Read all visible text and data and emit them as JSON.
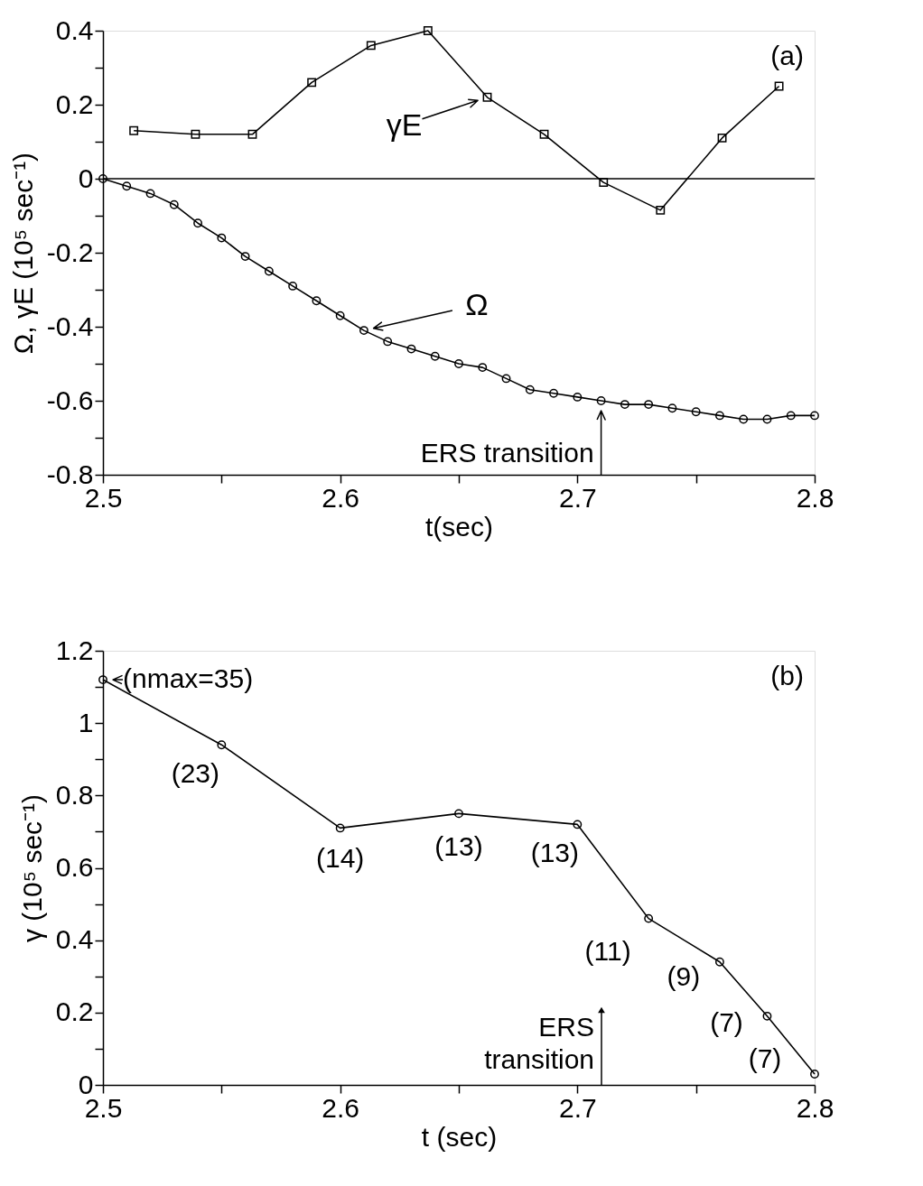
{
  "chart_data": [
    {
      "type": "line",
      "xlabel": "t(sec)",
      "ylabel": "Ω, γE (10⁵ sec⁻¹)",
      "xlim": [
        2.5,
        2.8
      ],
      "xticks": [
        2.5,
        {
          "value": 2.55,
          "label": null
        },
        2.6,
        {
          "value": 2.65,
          "label": null
        },
        2.7,
        {
          "value": 2.75,
          "label": null
        },
        2.8
      ],
      "ylim": [
        -0.8,
        0.4
      ],
      "yticks": [
        -0.8,
        {
          "value": -0.7,
          "label": null
        },
        -0.6,
        {
          "value": -0.5,
          "label": null
        },
        -0.4,
        {
          "value": -0.3,
          "label": null
        },
        -0.2,
        {
          "value": -0.1,
          "label": null
        },
        0,
        {
          "value": 0.1,
          "label": null
        },
        0.2,
        {
          "value": 0.3,
          "label": null
        },
        0.4
      ],
      "grid": false,
      "line_style": "solid",
      "ref_lines": [
        {
          "axis": "y",
          "value": 0,
          "color": "#000000"
        }
      ],
      "series": [
        {
          "name": "γE",
          "color": "#000000",
          "marker": "square",
          "x": [
            2.513,
            2.539,
            2.563,
            2.588,
            2.613,
            2.637,
            2.662,
            2.686,
            2.711,
            2.735,
            2.761,
            2.785
          ],
          "values": [
            0.13,
            0.12,
            0.12,
            0.26,
            0.36,
            0.4,
            0.22,
            0.12,
            -0.01,
            -0.085,
            0.11,
            0.25
          ]
        },
        {
          "name": "Ω",
          "color": "#000000",
          "marker": "circle",
          "x": [
            2.5,
            2.51,
            2.52,
            2.53,
            2.54,
            2.55,
            2.56,
            2.57,
            2.58,
            2.59,
            2.6,
            2.61,
            2.62,
            2.63,
            2.64,
            2.65,
            2.66,
            2.67,
            2.68,
            2.69,
            2.7,
            2.71,
            2.72,
            2.73,
            2.74,
            2.75,
            2.76,
            2.77,
            2.78,
            2.79,
            2.8
          ],
          "values": [
            0,
            -0.02,
            -0.04,
            -0.07,
            -0.12,
            -0.16,
            -0.21,
            -0.25,
            -0.29,
            -0.33,
            -0.37,
            -0.41,
            -0.44,
            -0.46,
            -0.48,
            -0.5,
            -0.51,
            -0.54,
            -0.57,
            -0.58,
            -0.59,
            -0.6,
            -0.61,
            -0.61,
            -0.62,
            -0.63,
            -0.64,
            -0.65,
            -0.65,
            -0.64,
            -0.64
          ]
        }
      ],
      "annotations": [
        "(a)",
        {
          "text": "ERS transition",
          "x": 2.71,
          "y": -0.6
        }
      ]
    },
    {
      "type": "line",
      "xlabel": "t (sec)",
      "ylabel": "γ (10⁵ sec⁻¹)",
      "xlim": [
        2.5,
        2.8
      ],
      "xticks": [
        2.5,
        {
          "value": 2.55,
          "label": null
        },
        2.6,
        {
          "value": 2.65,
          "label": null
        },
        2.7,
        {
          "value": 2.75,
          "label": null
        },
        2.8
      ],
      "ylim": [
        0,
        1.2
      ],
      "yticks": [
        0,
        {
          "value": 0.1,
          "label": null
        },
        0.2,
        {
          "value": 0.3,
          "label": null
        },
        0.4,
        {
          "value": 0.5,
          "label": null
        },
        0.6,
        {
          "value": 0.7,
          "label": null
        },
        0.8,
        {
          "value": 0.9,
          "label": null
        },
        1,
        {
          "value": 1.1,
          "label": null
        },
        1.2
      ],
      "grid": false,
      "line_style": "solid",
      "series": [
        {
          "color": "#000000",
          "marker": "circle",
          "x": [
            2.5,
            2.55,
            2.6,
            2.65,
            2.7,
            2.73,
            2.76,
            2.78,
            2.8
          ],
          "values": [
            1.12,
            0.94,
            0.71,
            0.75,
            0.72,
            0.46,
            0.34,
            0.19,
            0.03
          ]
        }
      ],
      "annotations": [
        {
          "text": "(nmax=35)",
          "x": 2.5,
          "y": 1.12
        },
        {
          "text": "(23)",
          "x": 2.55,
          "y": 0.94
        },
        {
          "text": "(14)",
          "x": 2.6,
          "y": 0.71
        },
        {
          "text": "(13)",
          "x": 2.65,
          "y": 0.75
        },
        {
          "text": "(13)",
          "x": 2.7,
          "y": 0.72
        },
        {
          "text": "(11)",
          "x": 2.73,
          "y": 0.46
        },
        {
          "text": "(9)",
          "x": 2.76,
          "y": 0.34
        },
        {
          "text": "(7)",
          "x": 2.78,
          "y": 0.19
        },
        {
          "text": "(7)",
          "x": 2.8,
          "y": 0.03
        },
        "ERS\ntransition",
        "(b)"
      ]
    }
  ]
}
